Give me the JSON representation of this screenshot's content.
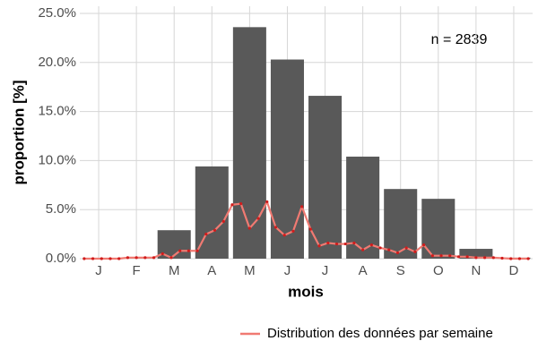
{
  "chart_data": {
    "type": "bar",
    "categories": [
      "J",
      "F",
      "M",
      "A",
      "M",
      "J",
      "J",
      "A",
      "S",
      "O",
      "N",
      "D"
    ],
    "values": [
      0,
      0.1,
      2.9,
      9.4,
      23.6,
      20.3,
      16.6,
      10.4,
      7.1,
      6.1,
      1.0,
      0.1
    ],
    "color": "#595959",
    "ylim": [
      0,
      25
    ],
    "yticks": [
      {
        "value": 0,
        "label": "0.0%"
      },
      {
        "value": 5,
        "label": "5.0%"
      },
      {
        "value": 10,
        "label": "10.0%"
      },
      {
        "value": 15,
        "label": "15.0%"
      },
      {
        "value": 20,
        "label": "20.0%"
      },
      {
        "value": 25,
        "label": "25.0%"
      }
    ],
    "grid": true,
    "ylabel": "proportion [%]",
    "xlabel": "mois",
    "annotation": "n = 2839",
    "legend": "bottom-right",
    "overlay": {
      "type": "line",
      "name": "Distribution des données par semaine",
      "color": "#f07a72",
      "point_color": "#d01c1c",
      "xlim": [
        0.5,
        52.5
      ],
      "x": [
        1,
        2,
        3,
        4,
        5,
        6,
        7,
        8,
        9,
        10,
        11,
        12,
        13,
        14,
        15,
        16,
        17,
        18,
        19,
        20,
        21,
        22,
        23,
        24,
        25,
        26,
        27,
        28,
        29,
        30,
        31,
        32,
        33,
        34,
        35,
        36,
        37,
        38,
        39,
        40,
        41,
        42,
        43,
        44,
        45,
        46,
        47,
        48,
        49,
        50,
        51,
        52
      ],
      "values": [
        0,
        0,
        0,
        0,
        0,
        0.1,
        0.1,
        0.1,
        0.1,
        0.5,
        0.1,
        0.8,
        0.8,
        0.8,
        2.5,
        2.9,
        3.8,
        5.5,
        5.6,
        3.1,
        4.1,
        5.8,
        3.2,
        2.4,
        2.8,
        5.3,
        3.0,
        1.3,
        1.6,
        1.5,
        1.5,
        1.6,
        0.9,
        1.4,
        1.1,
        0.9,
        0.6,
        1.1,
        0.7,
        1.4,
        0.3,
        0.3,
        0.3,
        0.2,
        0.2,
        0.1,
        0.1,
        0.1,
        0.05,
        0,
        0,
        0
      ]
    }
  }
}
